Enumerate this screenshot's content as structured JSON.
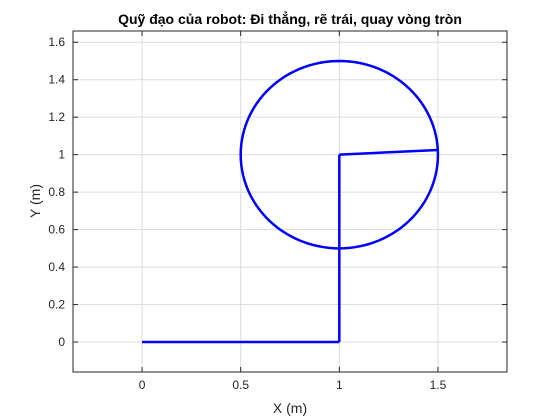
{
  "chart_data": {
    "type": "line",
    "title": "Quỹ đạo của robot: Đi thẳng, rẽ trái, quay vòng tròn",
    "xlabel": "X (m)",
    "ylabel": "Y (m)",
    "xlim": [
      -0.35,
      1.85
    ],
    "ylim": [
      -0.16,
      1.66
    ],
    "xticks": [
      0,
      0.5,
      1,
      1.5
    ],
    "xtick_labels": [
      "0",
      "0.5",
      "1",
      "1.5"
    ],
    "yticks": [
      0,
      0.2,
      0.4,
      0.6,
      0.8,
      1,
      1.2,
      1.4,
      1.6
    ],
    "ytick_labels": [
      "0",
      "0.2",
      "0.4",
      "0.6",
      "0.8",
      "1",
      "1.2",
      "1.4",
      "1.6"
    ],
    "grid": true,
    "legend": "none",
    "series": [
      {
        "color": "#0000ff",
        "segments": [
          {
            "shape": "line",
            "x": [
              0,
              1
            ],
            "y": [
              0,
              0
            ]
          },
          {
            "shape": "line",
            "x": [
              1,
              1
            ],
            "y": [
              0,
              1
            ]
          },
          {
            "shape": "line",
            "x": [
              1,
              1.5
            ],
            "y": [
              1,
              1.025
            ]
          },
          {
            "shape": "circle",
            "center": [
              1,
              1
            ],
            "radius": 0.5
          }
        ]
      }
    ]
  }
}
